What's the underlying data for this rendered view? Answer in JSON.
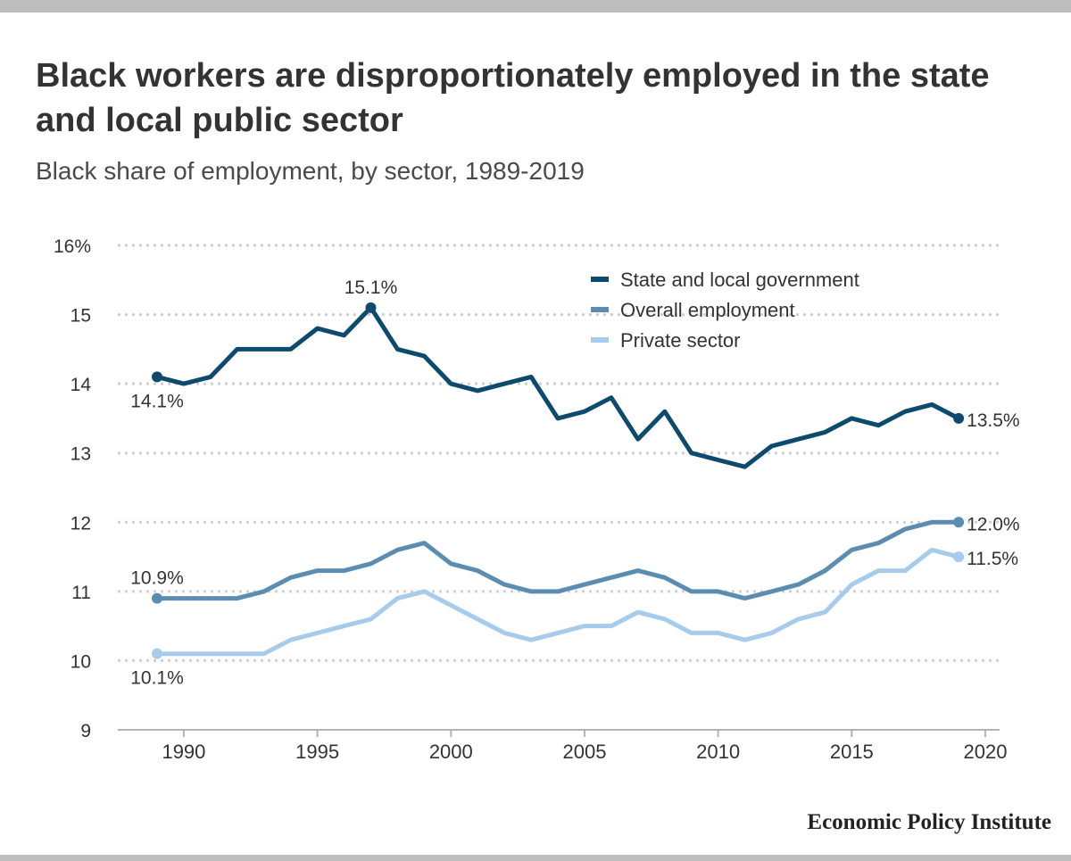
{
  "title": "Black workers are disproportionately employed in the state and local public sector",
  "subtitle": "Black share of employment, by sector, 1989-2019",
  "source": "Economic Policy Institute",
  "chart_data": {
    "type": "line",
    "title": "Black workers are disproportionately employed in the state and local public sector",
    "subtitle": "Black share of employment, by sector, 1989-2019",
    "xlabel": "",
    "ylabel": "",
    "x": [
      1989,
      1990,
      1991,
      1992,
      1993,
      1994,
      1995,
      1996,
      1997,
      1998,
      1999,
      2000,
      2001,
      2002,
      2003,
      2004,
      2005,
      2006,
      2007,
      2008,
      2009,
      2010,
      2011,
      2012,
      2013,
      2014,
      2015,
      2016,
      2017,
      2018,
      2019
    ],
    "xlim": [
      1989,
      2020
    ],
    "ylim": [
      9,
      16
    ],
    "xticks": [
      1990,
      1995,
      2000,
      2005,
      2010,
      2015,
      2020
    ],
    "yticks": [
      {
        "value": 9,
        "label": "9"
      },
      {
        "value": 10,
        "label": "10"
      },
      {
        "value": 11,
        "label": "11"
      },
      {
        "value": 12,
        "label": "12"
      },
      {
        "value": 13,
        "label": "13"
      },
      {
        "value": 14,
        "label": "14"
      },
      {
        "value": 15,
        "label": "15"
      },
      {
        "value": 16,
        "label": "16%"
      }
    ],
    "grid": true,
    "legend": "top-right",
    "series": [
      {
        "name": "State and local government",
        "color": "#0c4a6e",
        "values": [
          14.1,
          14.0,
          14.1,
          14.5,
          14.5,
          14.5,
          14.8,
          14.7,
          15.1,
          14.5,
          14.4,
          14.0,
          13.9,
          14.0,
          14.1,
          13.5,
          13.6,
          13.8,
          13.2,
          13.6,
          13.0,
          12.9,
          12.8,
          13.1,
          13.2,
          13.3,
          13.5,
          13.4,
          13.6,
          13.7,
          13.5
        ]
      },
      {
        "name": "Overall employment",
        "color": "#5b8db3",
        "values": [
          10.9,
          10.9,
          10.9,
          10.9,
          11.0,
          11.2,
          11.3,
          11.3,
          11.4,
          11.6,
          11.7,
          11.4,
          11.3,
          11.1,
          11.0,
          11.0,
          11.1,
          11.2,
          11.3,
          11.2,
          11.0,
          11.0,
          10.9,
          11.0,
          11.1,
          11.3,
          11.6,
          11.7,
          11.9,
          12.0,
          12.0
        ]
      },
      {
        "name": "Private sector",
        "color": "#a6cbeb",
        "values": [
          10.1,
          10.1,
          10.1,
          10.1,
          10.1,
          10.3,
          10.4,
          10.5,
          10.6,
          10.9,
          11.0,
          10.8,
          10.6,
          10.4,
          10.3,
          10.4,
          10.5,
          10.5,
          10.7,
          10.6,
          10.4,
          10.4,
          10.3,
          10.4,
          10.6,
          10.7,
          11.1,
          11.3,
          11.3,
          11.6,
          11.5
        ]
      }
    ],
    "annotations": [
      {
        "series": 0,
        "x": 1989,
        "label": "14.1%",
        "pos": "below"
      },
      {
        "series": 0,
        "x": 1997,
        "label": "15.1%",
        "pos": "above"
      },
      {
        "series": 0,
        "x": 2019,
        "label": "13.5%",
        "pos": "right"
      },
      {
        "series": 1,
        "x": 1989,
        "label": "10.9%",
        "pos": "above"
      },
      {
        "series": 1,
        "x": 2019,
        "label": "12.0%",
        "pos": "right"
      },
      {
        "series": 2,
        "x": 1989,
        "label": "10.1%",
        "pos": "below"
      },
      {
        "series": 2,
        "x": 2019,
        "label": "11.5%",
        "pos": "right"
      }
    ]
  }
}
